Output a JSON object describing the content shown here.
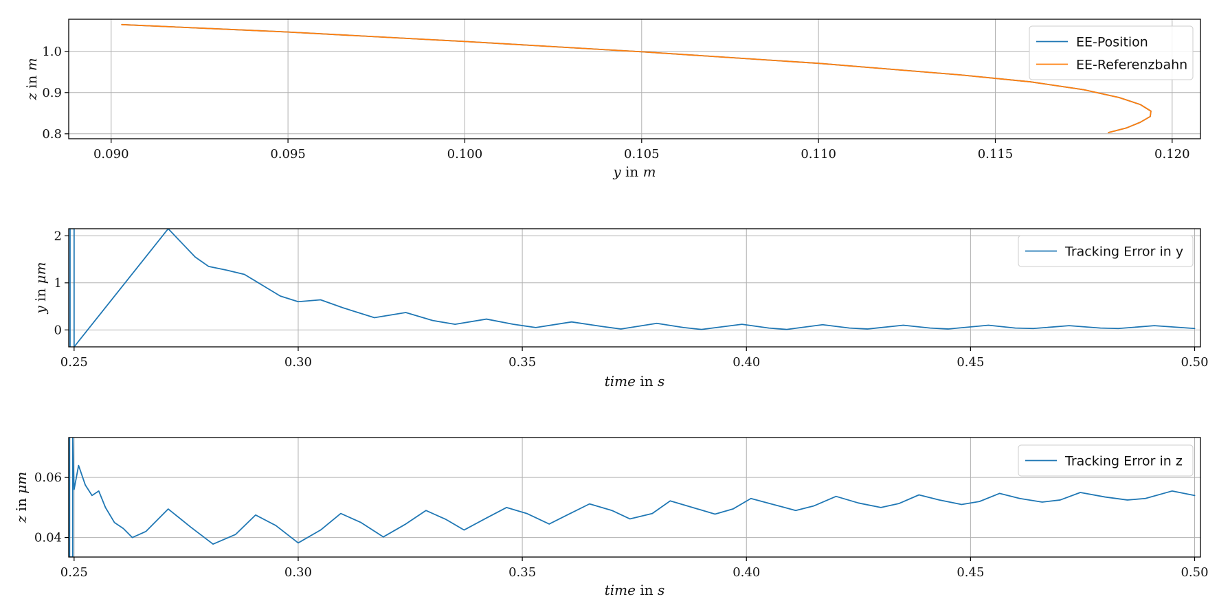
{
  "colors": {
    "series_blue": "#1f77b4",
    "series_orange": "#ff7f0e",
    "grid": "#b0b0b0",
    "axes": "#000000",
    "legend_border": "#cccccc"
  },
  "chart_data": [
    {
      "type": "line",
      "grid": true,
      "legend_position": "top-right",
      "xlabel": "y in m",
      "xlabel_math": "y",
      "xlabel_mid": " in ",
      "xlabel_unit": "m",
      "ylabel": "z in m",
      "ylabel_math": "z",
      "ylabel_mid": " in ",
      "ylabel_unit": "m",
      "xlim": [
        0.0888,
        0.1208
      ],
      "ylim": [
        0.788,
        1.078
      ],
      "xticks": [
        0.09,
        0.095,
        0.1,
        0.105,
        0.11,
        0.115,
        0.12
      ],
      "xtick_labels": [
        "0.090",
        "0.095",
        "0.100",
        "0.105",
        "0.110",
        "0.115",
        "0.120"
      ],
      "yticks": [
        0.8,
        0.9,
        1.0
      ],
      "ytick_labels": [
        "0.8",
        "0.9",
        "1.0"
      ],
      "series": [
        {
          "name": "EE-Position",
          "color": "#1f77b4",
          "x": [
            0.0903,
            0.095,
            0.1,
            0.105,
            0.11,
            0.114,
            0.116,
            0.1175,
            0.1185,
            0.1191,
            0.1194,
            0.11938,
            0.1191,
            0.1187,
            0.1182
          ],
          "y": [
            1.065,
            1.047,
            1.024,
            0.999,
            0.971,
            0.943,
            0.926,
            0.907,
            0.888,
            0.871,
            0.855,
            0.842,
            0.828,
            0.814,
            0.803
          ]
        },
        {
          "name": "EE-Referenzbahn",
          "color": "#ff7f0e",
          "x": [
            0.0903,
            0.095,
            0.1,
            0.105,
            0.11,
            0.114,
            0.116,
            0.1175,
            0.1185,
            0.1191,
            0.1194,
            0.11938,
            0.1191,
            0.1187,
            0.1182
          ],
          "y": [
            1.065,
            1.047,
            1.024,
            0.999,
            0.971,
            0.943,
            0.926,
            0.907,
            0.888,
            0.871,
            0.855,
            0.842,
            0.828,
            0.814,
            0.803
          ]
        }
      ]
    },
    {
      "type": "line",
      "grid": true,
      "legend_position": "top-right",
      "xlabel": "time in s",
      "xlabel_math": "time",
      "xlabel_mid": " in ",
      "xlabel_unit": "s",
      "ylabel": "y in μm",
      "ylabel_math": "y",
      "ylabel_mid": " in ",
      "ylabel_unit": "μm",
      "xlim": [
        0.2488,
        0.5013
      ],
      "ylim": [
        -0.36,
        2.15
      ],
      "xticks": [
        0.25,
        0.3,
        0.35,
        0.4,
        0.45,
        0.5
      ],
      "xtick_labels": [
        "0.25",
        "0.30",
        "0.35",
        "0.40",
        "0.45",
        "0.50"
      ],
      "yticks": [
        0,
        1,
        2
      ],
      "ytick_labels": [
        "0",
        "1",
        "2"
      ],
      "series": [
        {
          "name": "Tracking Error in y",
          "color": "#1f77b4",
          "x": [
            0.2491,
            0.2491,
            0.25,
            0.25,
            0.271,
            0.274,
            0.277,
            0.28,
            0.284,
            0.288,
            0.292,
            0.296,
            0.3,
            0.305,
            0.31,
            0.317,
            0.324,
            0.33,
            0.335,
            0.342,
            0.348,
            0.353,
            0.361,
            0.368,
            0.372,
            0.38,
            0.386,
            0.39,
            0.399,
            0.405,
            0.409,
            0.417,
            0.423,
            0.427,
            0.435,
            0.441,
            0.445,
            0.454,
            0.46,
            0.464,
            0.472,
            0.479,
            0.483,
            0.491,
            0.5
          ],
          "y": [
            -0.36,
            2.15,
            2.15,
            -0.36,
            2.15,
            1.85,
            1.55,
            1.35,
            1.27,
            1.18,
            0.95,
            0.72,
            0.6,
            0.64,
            0.47,
            0.26,
            0.37,
            0.2,
            0.12,
            0.23,
            0.12,
            0.05,
            0.17,
            0.07,
            0.02,
            0.14,
            0.05,
            0.01,
            0.12,
            0.04,
            0.01,
            0.11,
            0.04,
            0.02,
            0.1,
            0.04,
            0.02,
            0.1,
            0.04,
            0.03,
            0.09,
            0.04,
            0.03,
            0.09,
            0.03
          ]
        }
      ]
    },
    {
      "type": "line",
      "grid": true,
      "legend_position": "top-right",
      "xlabel": "time in s",
      "xlabel_math": "time",
      "xlabel_mid": " in ",
      "xlabel_unit": "s",
      "ylabel": "z in μm",
      "ylabel_math": "z",
      "ylabel_mid": " in ",
      "ylabel_unit": "μm",
      "xlim": [
        0.2488,
        0.5013
      ],
      "ylim": [
        0.0335,
        0.0733
      ],
      "xticks": [
        0.25,
        0.3,
        0.35,
        0.4,
        0.45,
        0.5
      ],
      "xtick_labels": [
        "0.25",
        "0.30",
        "0.35",
        "0.40",
        "0.45",
        "0.50"
      ],
      "yticks": [
        0.04,
        0.06
      ],
      "ytick_labels": [
        "0.04",
        "0.06"
      ],
      "series": [
        {
          "name": "Tracking Error in z",
          "color": "#1f77b4",
          "x": [
            0.249,
            0.249,
            0.2497,
            0.2497,
            0.25,
            0.251,
            0.2525,
            0.254,
            0.2555,
            0.257,
            0.259,
            0.261,
            0.263,
            0.266,
            0.271,
            0.276,
            0.281,
            0.286,
            0.2905,
            0.295,
            0.3,
            0.305,
            0.3095,
            0.314,
            0.319,
            0.324,
            0.3285,
            0.333,
            0.337,
            0.342,
            0.3465,
            0.351,
            0.356,
            0.36,
            0.365,
            0.37,
            0.374,
            0.379,
            0.383,
            0.388,
            0.393,
            0.397,
            0.401,
            0.406,
            0.411,
            0.415,
            0.42,
            0.425,
            0.43,
            0.434,
            0.4385,
            0.443,
            0.448,
            0.452,
            0.4565,
            0.461,
            0.466,
            0.47,
            0.4745,
            0.48,
            0.485,
            0.489,
            0.495,
            0.5
          ],
          "y": [
            0.0733,
            0.0335,
            0.0335,
            0.0733,
            0.056,
            0.064,
            0.0575,
            0.054,
            0.0555,
            0.05,
            0.045,
            0.043,
            0.04,
            0.042,
            0.0495,
            0.0435,
            0.0378,
            0.041,
            0.0475,
            0.044,
            0.0382,
            0.0425,
            0.048,
            0.045,
            0.0402,
            0.0445,
            0.049,
            0.046,
            0.0425,
            0.0465,
            0.05,
            0.048,
            0.0445,
            0.0475,
            0.0512,
            0.049,
            0.0462,
            0.048,
            0.0522,
            0.05,
            0.0478,
            0.0495,
            0.053,
            0.051,
            0.049,
            0.0505,
            0.0537,
            0.0515,
            0.05,
            0.0513,
            0.0542,
            0.0525,
            0.051,
            0.052,
            0.0547,
            0.053,
            0.0518,
            0.0525,
            0.055,
            0.0535,
            0.0525,
            0.053,
            0.0555,
            0.054
          ]
        }
      ]
    }
  ]
}
